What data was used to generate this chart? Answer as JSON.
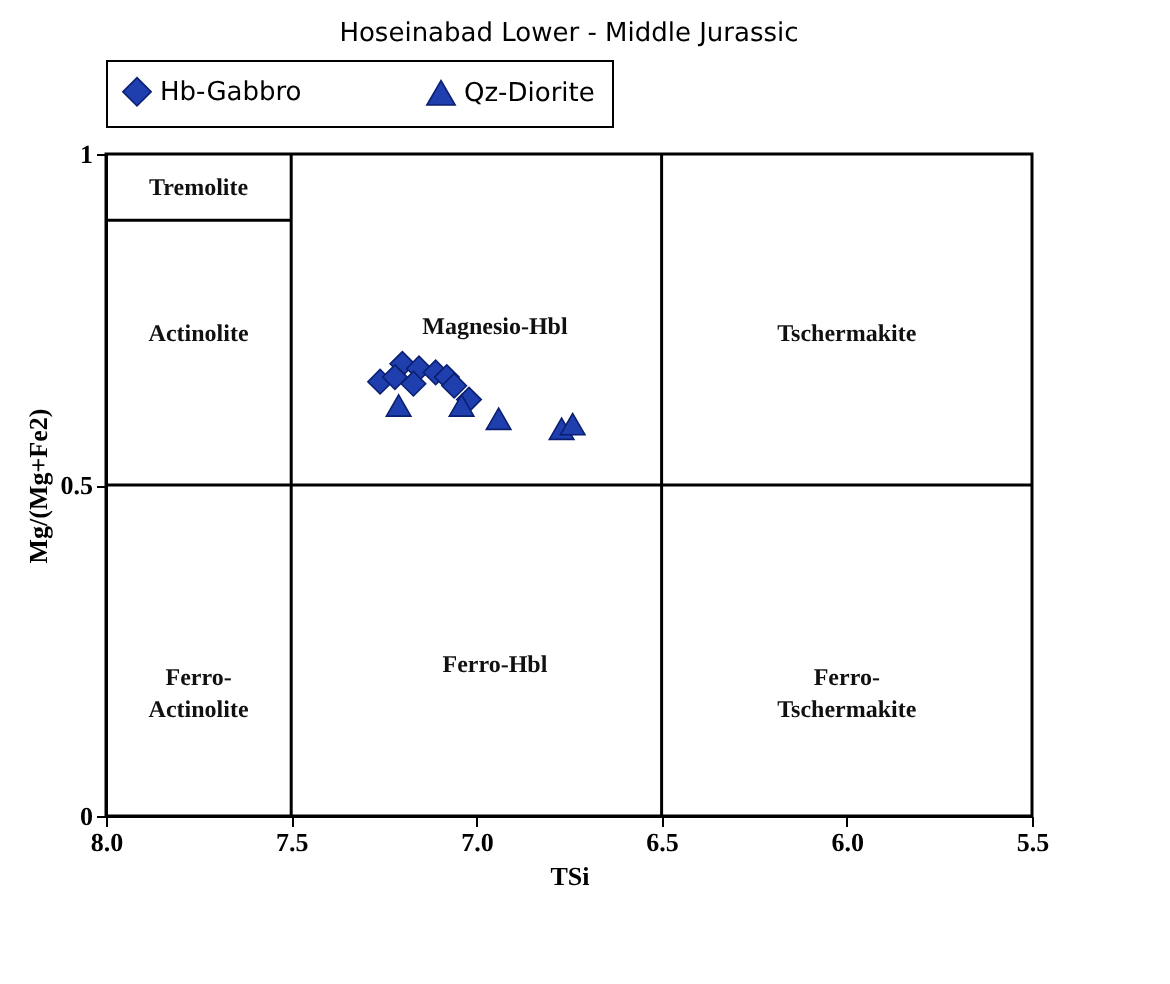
{
  "chart_data": {
    "type": "scatter",
    "title": "Hoseinabad Lower - Middle Jurassic",
    "xlabel": "TSi",
    "ylabel": "Mg/(Mg+Fe2)",
    "xlim": [
      8,
      5.5
    ],
    "xticks": [
      {
        "value": 8,
        "label": "8.0"
      },
      {
        "value": 7.5,
        "label": "7.5"
      },
      {
        "value": 7,
        "label": "7.0"
      },
      {
        "value": 6.5,
        "label": "6.5"
      },
      {
        "value": 6,
        "label": "6.0"
      },
      {
        "value": 5.5,
        "label": "5.5"
      }
    ],
    "ylim": [
      0,
      1
    ],
    "yticks": [
      0,
      0.5,
      1
    ],
    "grid": false,
    "legend": "top",
    "series": [
      {
        "name": "Hb-Gabbro",
        "color": "#1f3fae",
        "marker": "diamond",
        "x": [
          7.26,
          7.2,
          7.22,
          7.155,
          7.17,
          7.11,
          7.08,
          7.06,
          7.02
        ],
        "values": [
          0.656,
          0.683,
          0.663,
          0.676,
          0.653,
          0.67,
          0.663,
          0.65,
          0.629
        ]
      },
      {
        "name": "Qz-Diorite",
        "color": "#1f3fae",
        "marker": "triangle",
        "x": [
          7.21,
          7.04,
          6.94,
          6.77,
          6.74
        ],
        "values": [
          0.62,
          0.62,
          0.6,
          0.585,
          0.592
        ]
      },
      {
        "type": "line",
        "color": "#000000",
        "marker": "none",
        "x": [
          8,
          7.5
        ],
        "values": [
          0.9,
          0.9
        ]
      }
    ],
    "ref_lines": [
      {
        "axis": "x",
        "value": 7.5,
        "color": "#000000"
      },
      {
        "axis": "x",
        "value": 6.5,
        "color": "#000000"
      },
      {
        "axis": "y",
        "value": 0.5,
        "color": "#000000"
      }
    ],
    "annotations": [
      "Tremolite",
      "Actinolite",
      "Magnesio-Hbl",
      "Tschermakite",
      "Ferro-\nActinolite",
      "Ferro-Hbl",
      "Ferro-\nTschermakite"
    ]
  }
}
